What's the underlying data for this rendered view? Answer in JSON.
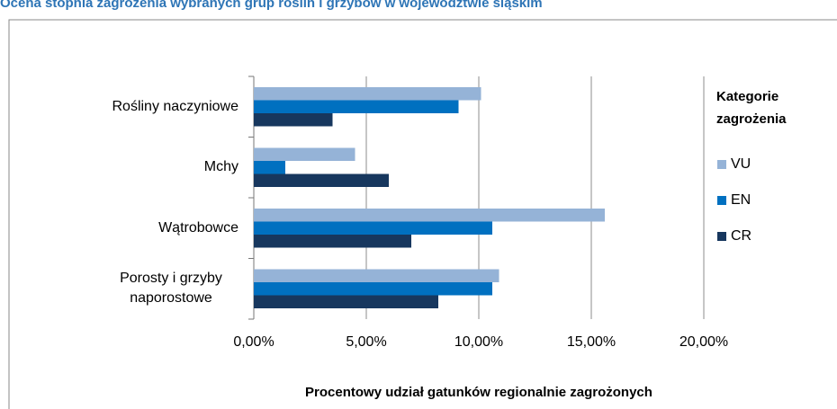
{
  "chart_data": {
    "type": "bar",
    "orientation": "horizontal",
    "title": "Ocena stopnia zagrożenia wybranych grup roślin i grzybów w województwie śląskim",
    "xlabel": "Procentowy udział gatunków regionalnie zagrożonych",
    "legend_title": "Kategorie zagrożenia",
    "categories": [
      "Rośliny naczyniowe",
      "Mchy",
      "Wątrobowce",
      "Porosty i grzyby naporostowe"
    ],
    "series": [
      {
        "name": "VU",
        "color": "#95b3d7",
        "values": [
          10.1,
          4.5,
          15.6,
          10.9
        ]
      },
      {
        "name": "EN",
        "color": "#0070c0",
        "values": [
          9.1,
          1.4,
          10.6,
          10.6
        ]
      },
      {
        "name": "CR",
        "color": "#17375e",
        "values": [
          3.5,
          6.0,
          7.0,
          8.2
        ]
      }
    ],
    "xlim": [
      0,
      20
    ],
    "xticks": [
      {
        "value": 0,
        "label": "0,00%"
      },
      {
        "value": 5,
        "label": "5,00%"
      },
      {
        "value": 10,
        "label": "10,00%"
      },
      {
        "value": 15,
        "label": "15,00%"
      },
      {
        "value": 20,
        "label": "20,00%"
      }
    ],
    "grid": true,
    "legend": "right"
  }
}
